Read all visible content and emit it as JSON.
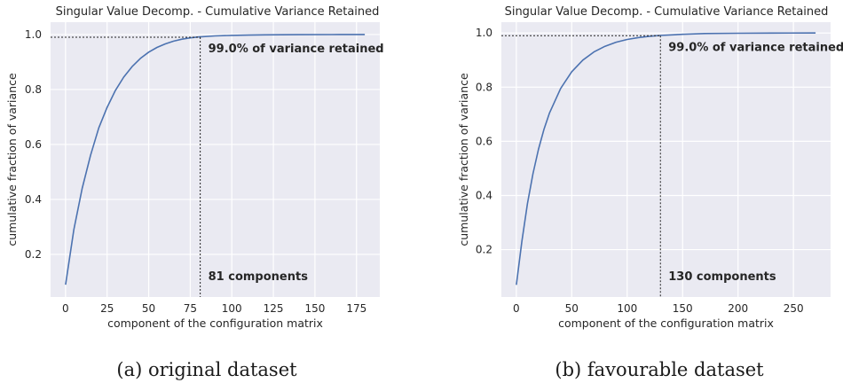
{
  "chart_data": [
    {
      "type": "line",
      "title": "Singular Value Decomp. - Cumulative Variance Retained",
      "xlabel": "component of the configuration matrix",
      "ylabel": "cumulative fraction of variance",
      "caption": "(a) original dataset",
      "xlim": [
        -9,
        189
      ],
      "ylim": [
        0.045,
        1.045
      ],
      "xticks": [
        0,
        25,
        50,
        75,
        100,
        125,
        150,
        175
      ],
      "yticks": [
        0.2,
        0.4,
        0.6,
        0.8,
        1.0
      ],
      "grid": true,
      "background": "#eaeaf2",
      "line_color": "#4c72b0",
      "series": [
        {
          "x": [
            0,
            5,
            10,
            15,
            20,
            25,
            30,
            35,
            40,
            45,
            50,
            55,
            60,
            65,
            70,
            75,
            80,
            90,
            100,
            110,
            120,
            140,
            160,
            180
          ],
          "values": [
            0.09,
            0.29,
            0.44,
            0.56,
            0.66,
            0.735,
            0.797,
            0.845,
            0.883,
            0.913,
            0.936,
            0.953,
            0.966,
            0.976,
            0.983,
            0.988,
            0.991,
            0.995,
            0.997,
            0.998,
            0.999,
            0.9995,
            0.9999,
            1.0
          ]
        }
      ],
      "annotations": {
        "threshold_y": 0.99,
        "components_x": 81,
        "variance_label": "99.0% of variance retained",
        "components_label": "81 components"
      }
    },
    {
      "type": "line",
      "title": "Singular Value Decomp. - Cumulative Variance Retained",
      "xlabel": "component of the configuration matrix",
      "ylabel": "cumulative fraction of variance",
      "caption": "(b) favourable dataset",
      "xlim": [
        -13.5,
        283.5
      ],
      "ylim": [
        0.025,
        1.04
      ],
      "xticks": [
        0,
        50,
        100,
        150,
        200,
        250
      ],
      "yticks": [
        0.2,
        0.4,
        0.6,
        0.8,
        1.0
      ],
      "grid": true,
      "background": "#eaeaf2",
      "line_color": "#4c72b0",
      "series": [
        {
          "x": [
            0,
            5,
            10,
            15,
            20,
            25,
            30,
            40,
            50,
            60,
            70,
            80,
            90,
            100,
            110,
            120,
            130,
            150,
            170,
            200,
            230,
            270
          ],
          "values": [
            0.07,
            0.23,
            0.37,
            0.48,
            0.57,
            0.645,
            0.705,
            0.795,
            0.857,
            0.9,
            0.93,
            0.951,
            0.966,
            0.976,
            0.983,
            0.988,
            0.991,
            0.995,
            0.998,
            0.999,
            0.9998,
            1.0
          ]
        }
      ],
      "annotations": {
        "threshold_y": 0.99,
        "components_x": 130,
        "variance_label": "99.0% of variance retained",
        "components_label": "130 components"
      }
    }
  ]
}
